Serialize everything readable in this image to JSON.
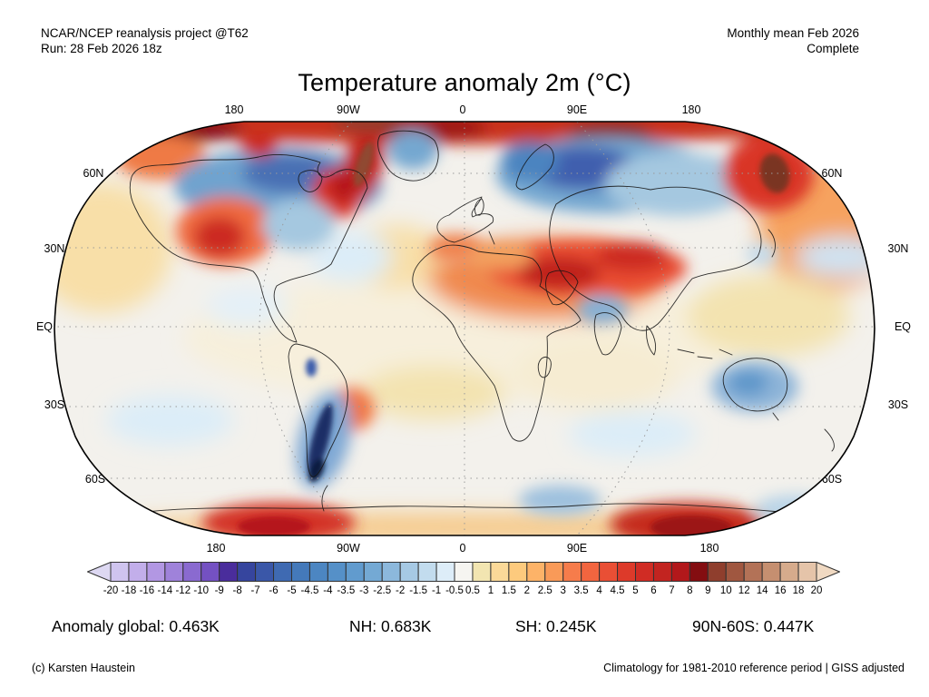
{
  "header": {
    "left1": "NCAR/NCEP reanalysis project @T62",
    "left2": "Run: 28 Feb 2026 18z",
    "right1": "Monthly mean Feb 2026",
    "right2": "Complete"
  },
  "title": "Temperature anomaly 2m (°C)",
  "map": {
    "top_axis": [
      "180",
      "90W",
      "0",
      "90E",
      "180"
    ],
    "bottom_axis": [
      "180",
      "90W",
      "0",
      "90E",
      "180"
    ],
    "left_axis": [
      "60N",
      "30N",
      "EQ",
      "30S",
      "60S"
    ],
    "right_axis": [
      "60N",
      "30N",
      "EQ",
      "30S",
      "60S"
    ]
  },
  "colorbar": {
    "tick_labels": [
      "-20",
      "-18",
      "-16",
      "-14",
      "-12",
      "-10",
      "-9",
      "-8",
      "-7",
      "-6",
      "-5",
      "-4.5",
      "-4",
      "-3.5",
      "-3",
      "-2.5",
      "-2",
      "-1.5",
      "-1",
      "-0.5",
      "0.5",
      "1",
      "1.5",
      "2",
      "2.5",
      "3",
      "3.5",
      "4",
      "4.5",
      "5",
      "6",
      "7",
      "8",
      "9",
      "10",
      "12",
      "14",
      "16",
      "18",
      "20"
    ],
    "cell_colors": [
      "#cfc4ef",
      "#c2aeea",
      "#b297e3",
      "#9f82da",
      "#8a6ad0",
      "#7451c2",
      "#4a2d9c",
      "#36459e",
      "#3a57a8",
      "#3f6ab2",
      "#4479ba",
      "#4c86c2",
      "#5590c8",
      "#619bce",
      "#74a9d4",
      "#8cb8dc",
      "#a6c9e4",
      "#c2dcee",
      "#ddedf8",
      "#f6f5f1",
      "#f2e5b1",
      "#fbd998",
      "#fdca7d",
      "#fdb368",
      "#f99a58",
      "#f67c4b",
      "#f2653f",
      "#e94f35",
      "#dd3a2a",
      "#d02c24",
      "#c22420",
      "#b2181b",
      "#840d11",
      "#8f3e2d",
      "#a05740",
      "#b37257",
      "#c58f70",
      "#d6ab8c",
      "#e5c4a9"
    ],
    "arrow_left_color": "#ddd8f2",
    "arrow_right_color": "#f0d9c2",
    "border_color": "#333333"
  },
  "stats": {
    "global": "Anomaly global: 0.463K",
    "nh": "NH: 0.683K",
    "sh": "SH: 0.245K",
    "band": "90N-60S: 0.447K"
  },
  "footer": {
    "left": "(c) Karsten Haustein",
    "right": "Climatology for 1981-2010 reference period | GISS adjusted"
  },
  "chart_data": {
    "type": "heatmap",
    "title": "Temperature anomaly 2m (°C)",
    "projection": "robinson-world-map",
    "variable": "2 m temperature anomaly",
    "period": "Monthly mean Feb 2026 (Complete)",
    "model_run": "NCAR/NCEP reanalysis @T62, Run 28 Feb 2026 18z",
    "reference": "Climatology 1981-2010, GISS adjusted",
    "units": "°C",
    "colorbar_levels": [
      -20,
      -18,
      -16,
      -14,
      -12,
      -10,
      -9,
      -8,
      -7,
      -6,
      -5,
      -4.5,
      -4,
      -3.5,
      -3,
      -2.5,
      -2,
      -1.5,
      -1,
      -0.5,
      0.5,
      1,
      1.5,
      2,
      2.5,
      3,
      3.5,
      4,
      4.5,
      5,
      6,
      7,
      8,
      9,
      10,
      12,
      14,
      16,
      18,
      20
    ],
    "longitude_ticks": [
      "180",
      "90W",
      "0",
      "90E",
      "180"
    ],
    "latitude_ticks": [
      "60N",
      "30N",
      "EQ",
      "30S",
      "60S"
    ],
    "summary_values_K": {
      "global": 0.463,
      "northern_hemisphere": 0.683,
      "southern_hemisphere": 0.245,
      "band_90N_60S": 0.447
    },
    "notable_anomalies": [
      {
        "region": "Arctic rim / high Arctic coast",
        "anomaly_C": 8
      },
      {
        "region": "Baffin Bay / Davis Strait",
        "anomaly_C": 10
      },
      {
        "region": "Central and northern Canada",
        "anomaly_C": -5
      },
      {
        "region": "Western United States",
        "anomaly_C": 4
      },
      {
        "region": "Eastern United States",
        "anomaly_C": -1.5
      },
      {
        "region": "Greenland interior",
        "anomaly_C": -3
      },
      {
        "region": "Scandinavia / western Siberia",
        "anomaly_C": -6
      },
      {
        "region": "Middle East / Central Asia",
        "anomaly_C": 5
      },
      {
        "region": "Northeast Siberia / Russian Far East",
        "anomaly_C": 9
      },
      {
        "region": "Sahara / North Africa",
        "anomaly_C": 3
      },
      {
        "region": "Patagonia / southern Chile",
        "anomaly_C": -8
      },
      {
        "region": "Northern Argentina",
        "anomaly_C": 3
      },
      {
        "region": "Western Australia",
        "anomaly_C": -2
      },
      {
        "region": "Antarctic coast (two strong warm blobs)",
        "anomaly_C": 6
      }
    ]
  }
}
